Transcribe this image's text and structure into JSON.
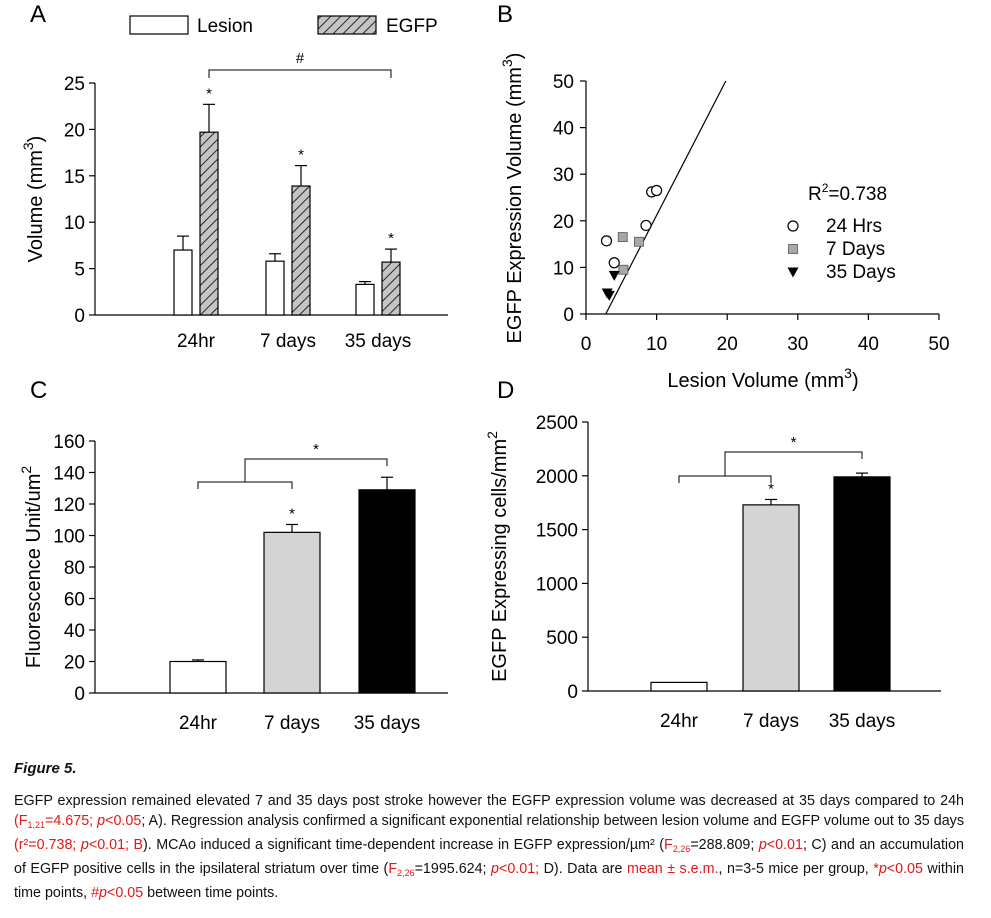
{
  "figure_label": "Figure 5.",
  "chart_data": [
    {
      "id": "A",
      "type": "bar",
      "panel_label": "A",
      "legend": [
        "Lesion",
        "EGFP"
      ],
      "categories": [
        "24hr",
        "7 days",
        "35 days"
      ],
      "series": [
        {
          "name": "Lesion",
          "values": [
            7.0,
            5.8,
            3.3
          ],
          "errors": [
            1.5,
            0.8,
            0.3
          ],
          "pattern": "white"
        },
        {
          "name": "EGFP",
          "values": [
            19.7,
            13.9,
            5.7
          ],
          "errors": [
            3.0,
            2.2,
            1.4
          ],
          "pattern": "hatched-gray"
        }
      ],
      "ylabel": "Volume (mm",
      "ylabel_sup": "3",
      "ylabel_close": ")",
      "ylim": [
        0,
        25
      ],
      "yticks": [
        "0",
        "5",
        "10",
        "15",
        "20",
        "25"
      ],
      "significance": {
        "bar_stars": [
          "*",
          "*",
          "*"
        ],
        "bracket_symbol": "#"
      }
    },
    {
      "id": "B",
      "type": "scatter",
      "panel_label": "B",
      "xlabel": "Lesion Volume (mm",
      "xlabel_sup": "3",
      "xlabel_close": ")",
      "ylabel": "EGFP Expression Volume (mm",
      "ylabel_sup": "3",
      "ylabel_close": ")",
      "xlim": [
        0,
        50
      ],
      "ylim": [
        0,
        50
      ],
      "xticks": [
        "0",
        "10",
        "20",
        "30",
        "40",
        "50"
      ],
      "yticks": [
        "0",
        "10",
        "20",
        "30",
        "40",
        "50"
      ],
      "r2_label": "R",
      "r2_sup": "2",
      "r2_value": "=0.738",
      "fit_line": [
        [
          2.8,
          0
        ],
        [
          19.8,
          50
        ]
      ],
      "series": [
        {
          "name": "24 Hrs",
          "marker": "open-circle",
          "points": [
            [
              2.9,
              15.7
            ],
            [
              4.0,
              11.0
            ],
            [
              8.5,
              19.0
            ],
            [
              9.3,
              26.2
            ],
            [
              10.0,
              26.5
            ]
          ]
        },
        {
          "name": "7 Days",
          "marker": "gray-square",
          "points": [
            [
              5.2,
              16.5
            ],
            [
              7.5,
              15.5
            ],
            [
              5.3,
              9.5
            ]
          ]
        },
        {
          "name": "35 Days",
          "marker": "black-triangle",
          "points": [
            [
              4.0,
              8.3
            ],
            [
              3.0,
              4.5
            ],
            [
              3.3,
              4.0
            ]
          ]
        }
      ]
    },
    {
      "id": "C",
      "type": "bar",
      "panel_label": "C",
      "categories": [
        "24hr",
        "7 days",
        "35 days"
      ],
      "values": [
        20,
        102,
        129
      ],
      "errors": [
        1,
        5,
        8
      ],
      "colors": [
        "#ffffff",
        "#d4d4d4",
        "#000000"
      ],
      "ylabel": "Fluorescence Unit/um",
      "ylabel_sup": "2",
      "ylim": [
        0,
        160
      ],
      "yticks": [
        "0",
        "20",
        "40",
        "60",
        "80",
        "100",
        "120",
        "140",
        "160"
      ],
      "significance": {
        "bar_star": "*",
        "bracket_symbol": "*"
      }
    },
    {
      "id": "D",
      "type": "bar",
      "panel_label": "D",
      "categories": [
        "24hr",
        "7 days",
        "35 days"
      ],
      "values": [
        80,
        1730,
        1990
      ],
      "errors": [
        0,
        50,
        35
      ],
      "colors": [
        "#ffffff",
        "#d4d4d4",
        "#000000"
      ],
      "ylabel": "EGFP Expressing cells/mm",
      "ylabel_sup": "2",
      "ylim": [
        0,
        2500
      ],
      "yticks": [
        "0",
        "500",
        "1000",
        "1500",
        "2000",
        "2500"
      ],
      "significance": {
        "bar_star": "*",
        "bracket_symbol": "*"
      }
    }
  ],
  "caption": [
    {
      "t": "EGFP expression remained elevated 7 and 35 days post stroke however the EGFP expression volume was decreased at 35 days compared to 24h "
    },
    {
      "t": "(F",
      "red": true
    },
    {
      "t": "1,21",
      "red": true,
      "sub": true
    },
    {
      "t": "=4.675; ",
      "red": true
    },
    {
      "t": "p",
      "red": true,
      "italic": true
    },
    {
      "t": "<0.05",
      "red": true
    },
    {
      "t": "; A). Regression analysis confirmed a significant exponential relationship between lesion volume and EGFP volume out to 35 days "
    },
    {
      "t": "(r²=0.738; ",
      "red": true
    },
    {
      "t": "p",
      "red": true,
      "italic": true
    },
    {
      "t": "<0.01; B",
      "red": true
    },
    {
      "t": "). MCAo induced a significant time-dependent increase in EGFP expression/µm² ("
    },
    {
      "t": "F",
      "red": true
    },
    {
      "t": "2,26",
      "red": true,
      "sub": true
    },
    {
      "t": "=288.809; "
    },
    {
      "t": "p",
      "red": true,
      "italic": true
    },
    {
      "t": "<0.01",
      "red": true
    },
    {
      "t": "; C) and an accumulation of EGFP positive cells in the ipsilateral striatum over time ("
    },
    {
      "t": "F",
      "red": true
    },
    {
      "t": "2,26",
      "red": true,
      "sub": true
    },
    {
      "t": "=1995.624; "
    },
    {
      "t": "p",
      "red": true,
      "italic": true
    },
    {
      "t": "<0.01;",
      "red": true
    },
    {
      "t": " D). Data are "
    },
    {
      "t": "mean ± s.e.m.",
      "red": true
    },
    {
      "t": ", n=3-5 mice per group, "
    },
    {
      "t": "*",
      "red": true
    },
    {
      "t": "p",
      "red": true,
      "italic": true
    },
    {
      "t": "<0.05",
      "red": true
    },
    {
      "t": " within time points, "
    },
    {
      "t": "#",
      "red": true
    },
    {
      "t": "p",
      "red": true,
      "italic": true
    },
    {
      "t": "<0.05",
      "red": true
    },
    {
      "t": " between time points."
    }
  ]
}
